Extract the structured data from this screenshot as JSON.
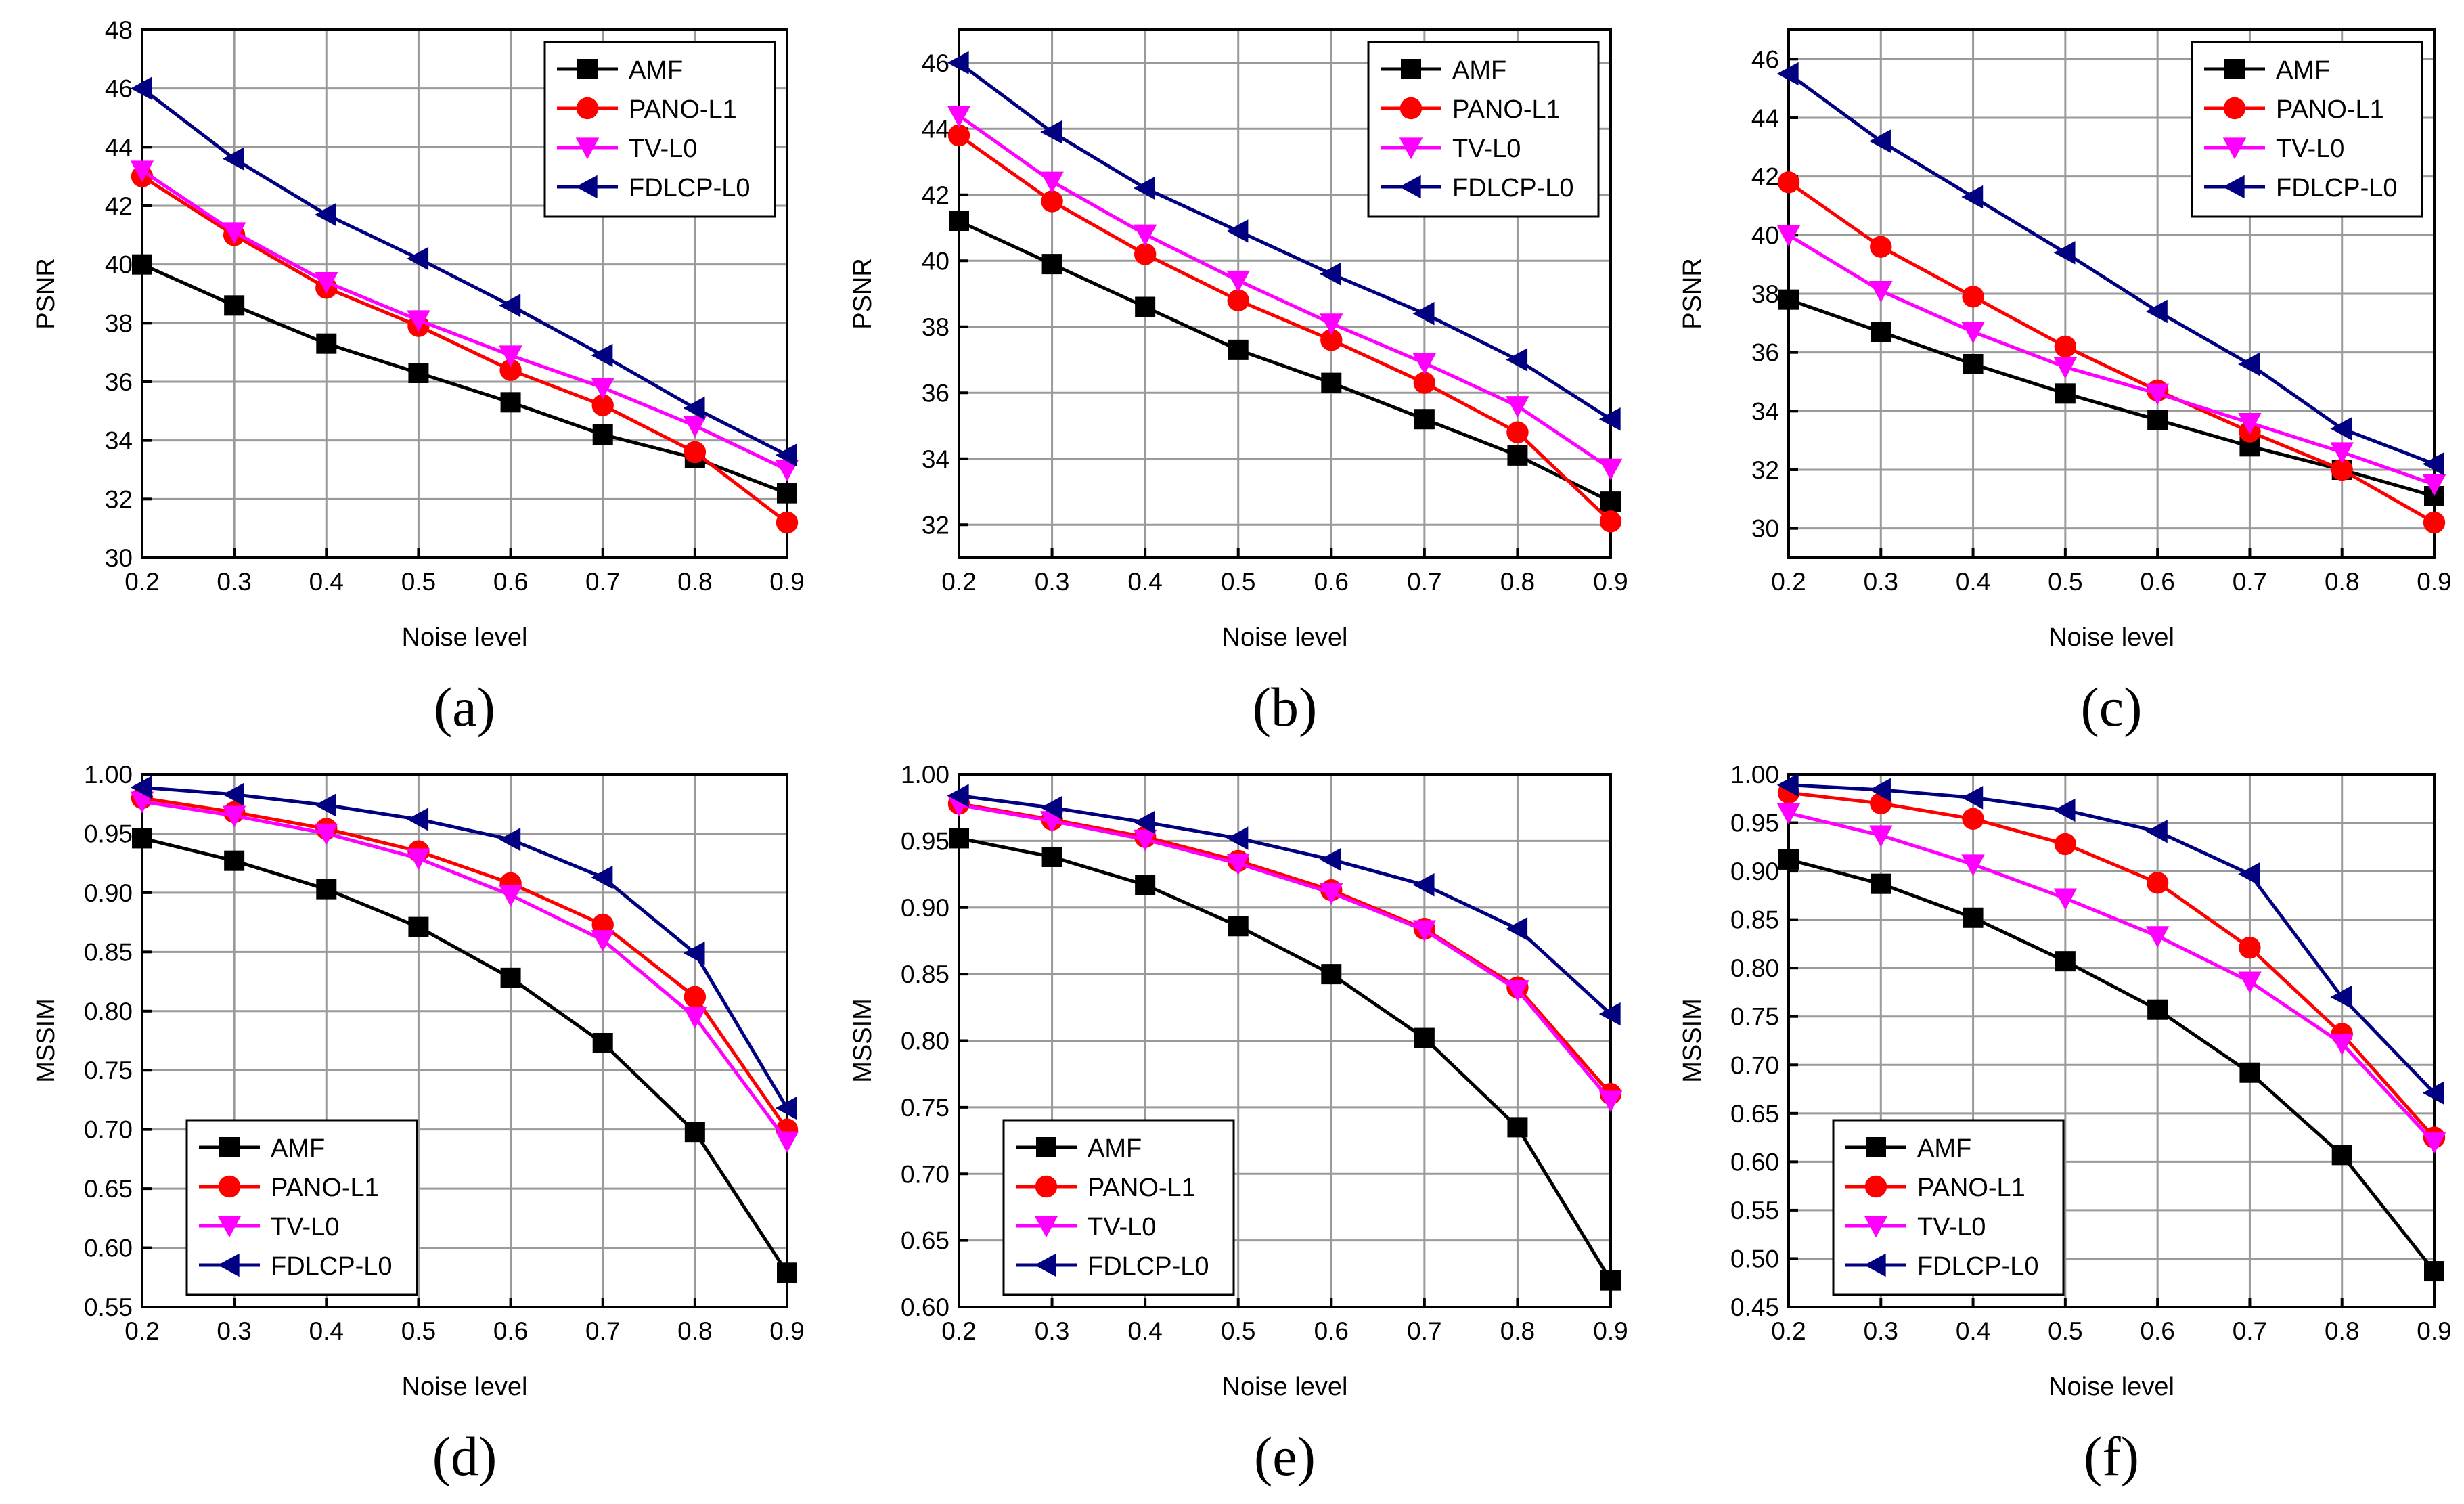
{
  "colors": {
    "AMF": "#000000",
    "PANO-L1": "#ff0000",
    "TV-L0": "#ff00ff",
    "FDLCP-L0": "#000080",
    "grid": "#9a9a9a",
    "axis": "#000000"
  },
  "chart_data": [
    {
      "type": "line",
      "caption": "(a)",
      "xlabel": "Noise level",
      "ylabel": "PSNR",
      "x": [
        0.2,
        0.3,
        0.4,
        0.5,
        0.6,
        0.7,
        0.8,
        0.9
      ],
      "xlim": [
        0.2,
        0.9
      ],
      "xticks": [
        0.2,
        0.3,
        0.4,
        0.5,
        0.6,
        0.7,
        0.8,
        0.9
      ],
      "ylim": [
        30,
        48
      ],
      "yticks": [
        30,
        32,
        34,
        36,
        38,
        40,
        42,
        44,
        46,
        48
      ],
      "ydecimals": 0,
      "grid": true,
      "legend_position": "top-right",
      "series": [
        {
          "name": "AMF",
          "marker": "square",
          "values": [
            40.0,
            38.6,
            37.3,
            36.3,
            35.3,
            34.2,
            33.4,
            32.2
          ]
        },
        {
          "name": "PANO-L1",
          "marker": "circle",
          "values": [
            43.0,
            41.0,
            39.2,
            37.9,
            36.4,
            35.2,
            33.6,
            31.2
          ]
        },
        {
          "name": "TV-L0",
          "marker": "triangle-down",
          "values": [
            43.2,
            41.1,
            39.4,
            38.1,
            36.9,
            35.8,
            34.5,
            33.0
          ]
        },
        {
          "name": "FDLCP-L0",
          "marker": "triangle-left",
          "values": [
            46.0,
            43.6,
            41.7,
            40.2,
            38.6,
            36.9,
            35.1,
            33.5
          ]
        }
      ]
    },
    {
      "type": "line",
      "caption": "(b)",
      "xlabel": "Noise level",
      "ylabel": "PSNR",
      "x": [
        0.2,
        0.3,
        0.4,
        0.5,
        0.6,
        0.7,
        0.8,
        0.9
      ],
      "xlim": [
        0.2,
        0.9
      ],
      "xticks": [
        0.2,
        0.3,
        0.4,
        0.5,
        0.6,
        0.7,
        0.8,
        0.9
      ],
      "ylim": [
        31,
        47
      ],
      "yticks": [
        32,
        34,
        36,
        38,
        40,
        42,
        44,
        46
      ],
      "ydecimals": 0,
      "grid": true,
      "legend_position": "top-right",
      "series": [
        {
          "name": "AMF",
          "marker": "square",
          "values": [
            41.2,
            39.9,
            38.6,
            37.3,
            36.3,
            35.2,
            34.1,
            32.7
          ]
        },
        {
          "name": "PANO-L1",
          "marker": "circle",
          "values": [
            43.8,
            41.8,
            40.2,
            38.8,
            37.6,
            36.3,
            34.8,
            32.1
          ]
        },
        {
          "name": "TV-L0",
          "marker": "triangle-down",
          "values": [
            44.4,
            42.4,
            40.8,
            39.4,
            38.1,
            36.9,
            35.6,
            33.7
          ]
        },
        {
          "name": "FDLCP-L0",
          "marker": "triangle-left",
          "values": [
            46.0,
            43.9,
            42.2,
            40.9,
            39.6,
            38.4,
            37.0,
            35.2
          ]
        }
      ]
    },
    {
      "type": "line",
      "caption": "(c)",
      "xlabel": "Noise level",
      "ylabel": "PSNR",
      "x": [
        0.2,
        0.3,
        0.4,
        0.5,
        0.6,
        0.7,
        0.8,
        0.9
      ],
      "xlim": [
        0.2,
        0.9
      ],
      "xticks": [
        0.2,
        0.3,
        0.4,
        0.5,
        0.6,
        0.7,
        0.8,
        0.9
      ],
      "ylim": [
        29,
        47
      ],
      "yticks": [
        30,
        32,
        34,
        36,
        38,
        40,
        42,
        44,
        46
      ],
      "ydecimals": 0,
      "grid": true,
      "legend_position": "top-right",
      "series": [
        {
          "name": "AMF",
          "marker": "square",
          "values": [
            37.8,
            36.7,
            35.6,
            34.6,
            33.7,
            32.8,
            32.0,
            31.1
          ]
        },
        {
          "name": "PANO-L1",
          "marker": "circle",
          "values": [
            41.8,
            39.6,
            37.9,
            36.2,
            34.7,
            33.3,
            32.0,
            30.2
          ]
        },
        {
          "name": "TV-L0",
          "marker": "triangle-down",
          "values": [
            40.0,
            38.1,
            36.7,
            35.5,
            34.6,
            33.6,
            32.6,
            31.5
          ]
        },
        {
          "name": "FDLCP-L0",
          "marker": "triangle-left",
          "values": [
            45.5,
            43.2,
            41.3,
            39.4,
            37.4,
            35.6,
            33.4,
            32.2
          ]
        }
      ]
    },
    {
      "type": "line",
      "caption": "(d)",
      "xlabel": "Noise level",
      "ylabel": "MSSIM",
      "x": [
        0.2,
        0.3,
        0.4,
        0.5,
        0.6,
        0.7,
        0.8,
        0.9
      ],
      "xlim": [
        0.2,
        0.9
      ],
      "xticks": [
        0.2,
        0.3,
        0.4,
        0.5,
        0.6,
        0.7,
        0.8,
        0.9
      ],
      "ylim": [
        0.55,
        1.0
      ],
      "yticks": [
        0.55,
        0.6,
        0.65,
        0.7,
        0.75,
        0.8,
        0.85,
        0.9,
        0.95,
        1.0
      ],
      "ydecimals": 2,
      "grid": true,
      "legend_position": "bottom-left",
      "series": [
        {
          "name": "AMF",
          "marker": "square",
          "values": [
            0.946,
            0.927,
            0.903,
            0.871,
            0.828,
            0.773,
            0.698,
            0.579
          ]
        },
        {
          "name": "PANO-L1",
          "marker": "circle",
          "values": [
            0.98,
            0.968,
            0.954,
            0.935,
            0.908,
            0.873,
            0.812,
            0.7
          ]
        },
        {
          "name": "TV-L0",
          "marker": "triangle-down",
          "values": [
            0.977,
            0.965,
            0.95,
            0.929,
            0.898,
            0.86,
            0.795,
            0.69
          ]
        },
        {
          "name": "FDLCP-L0",
          "marker": "triangle-left",
          "values": [
            0.989,
            0.983,
            0.974,
            0.962,
            0.945,
            0.913,
            0.849,
            0.718
          ]
        }
      ]
    },
    {
      "type": "line",
      "caption": "(e)",
      "xlabel": "Noise level",
      "ylabel": "MSSIM",
      "x": [
        0.2,
        0.3,
        0.4,
        0.5,
        0.6,
        0.7,
        0.8,
        0.9
      ],
      "xlim": [
        0.2,
        0.9
      ],
      "xticks": [
        0.2,
        0.3,
        0.4,
        0.5,
        0.6,
        0.7,
        0.8,
        0.9
      ],
      "ylim": [
        0.6,
        1.0
      ],
      "yticks": [
        0.6,
        0.65,
        0.7,
        0.75,
        0.8,
        0.85,
        0.9,
        0.95,
        1.0
      ],
      "ydecimals": 2,
      "grid": true,
      "legend_position": "bottom-left",
      "series": [
        {
          "name": "AMF",
          "marker": "square",
          "values": [
            0.952,
            0.938,
            0.917,
            0.886,
            0.85,
            0.802,
            0.735,
            0.62
          ]
        },
        {
          "name": "PANO-L1",
          "marker": "circle",
          "values": [
            0.978,
            0.966,
            0.953,
            0.935,
            0.913,
            0.884,
            0.84,
            0.76
          ]
        },
        {
          "name": "TV-L0",
          "marker": "triangle-down",
          "values": [
            0.977,
            0.965,
            0.951,
            0.933,
            0.911,
            0.883,
            0.838,
            0.755
          ]
        },
        {
          "name": "FDLCP-L0",
          "marker": "triangle-left",
          "values": [
            0.984,
            0.975,
            0.964,
            0.952,
            0.936,
            0.917,
            0.884,
            0.82
          ]
        }
      ]
    },
    {
      "type": "line",
      "caption": "(f)",
      "xlabel": "Noise level",
      "ylabel": "MSSIM",
      "x": [
        0.2,
        0.3,
        0.4,
        0.5,
        0.6,
        0.7,
        0.8,
        0.9
      ],
      "xlim": [
        0.2,
        0.9
      ],
      "xticks": [
        0.2,
        0.3,
        0.4,
        0.5,
        0.6,
        0.7,
        0.8,
        0.9
      ],
      "ylim": [
        0.45,
        1.0
      ],
      "yticks": [
        0.45,
        0.5,
        0.55,
        0.6,
        0.65,
        0.7,
        0.75,
        0.8,
        0.85,
        0.9,
        0.95,
        1.0
      ],
      "ydecimals": 2,
      "grid": true,
      "legend_position": "bottom-left",
      "series": [
        {
          "name": "AMF",
          "marker": "square",
          "values": [
            0.912,
            0.887,
            0.852,
            0.807,
            0.757,
            0.692,
            0.607,
            0.487
          ]
        },
        {
          "name": "PANO-L1",
          "marker": "circle",
          "values": [
            0.981,
            0.97,
            0.954,
            0.928,
            0.888,
            0.821,
            0.732,
            0.625
          ]
        },
        {
          "name": "TV-L0",
          "marker": "triangle-down",
          "values": [
            0.96,
            0.937,
            0.907,
            0.872,
            0.833,
            0.786,
            0.722,
            0.62
          ]
        },
        {
          "name": "FDLCP-L0",
          "marker": "triangle-left",
          "values": [
            0.989,
            0.984,
            0.976,
            0.963,
            0.941,
            0.897,
            0.77,
            0.671
          ]
        }
      ]
    }
  ]
}
